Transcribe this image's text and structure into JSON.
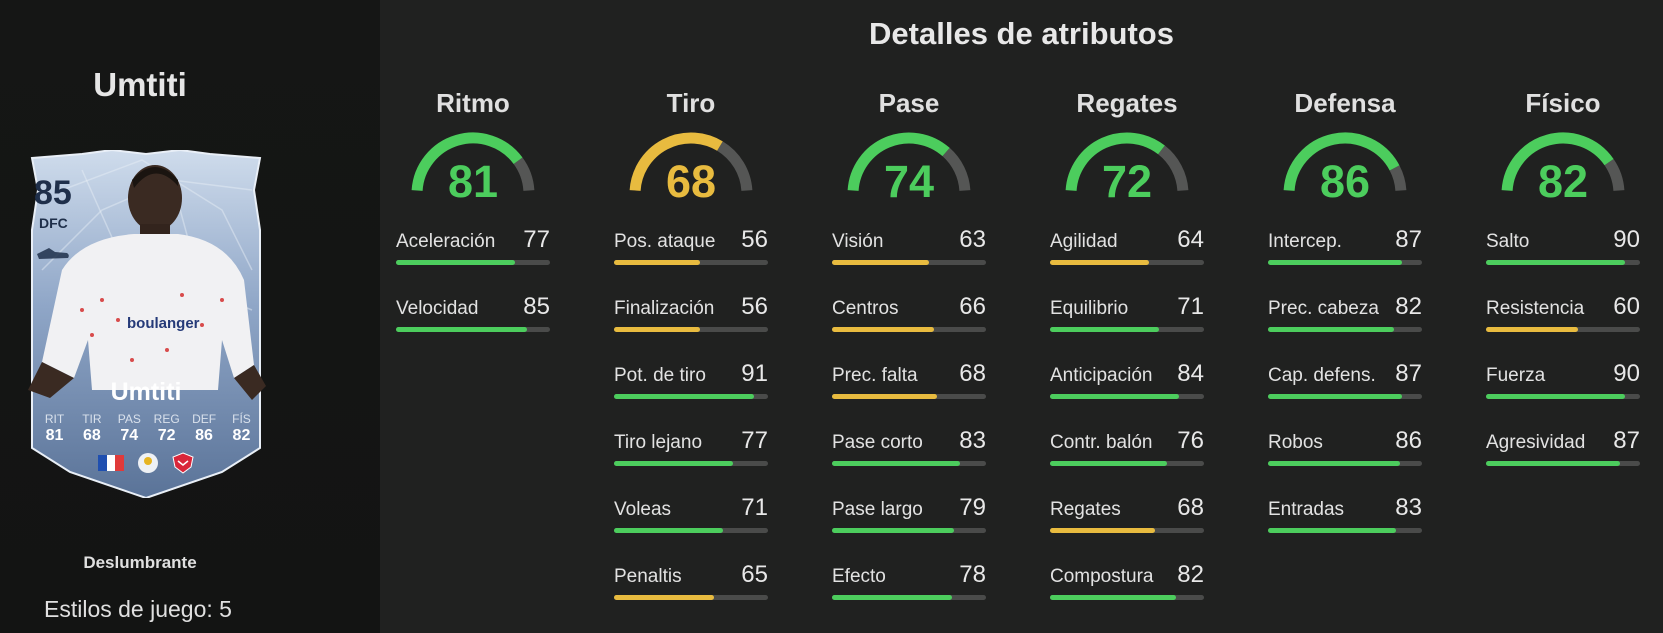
{
  "player": {
    "name": "Umtiti",
    "card": {
      "rating": "85",
      "position": "DFC",
      "name": "Umtiti",
      "stats": [
        {
          "label": "RIT",
          "value": "81"
        },
        {
          "label": "TIR",
          "value": "68"
        },
        {
          "label": "PAS",
          "value": "74"
        },
        {
          "label": "REG",
          "value": "72"
        },
        {
          "label": "DEF",
          "value": "86"
        },
        {
          "label": "FÍS",
          "value": "82"
        }
      ],
      "boot_icon": "boot-icon",
      "flag": "france-flag",
      "league": "ligue1-icon",
      "club": "lille-crest-icon"
    },
    "card_type": "Deslumbrante",
    "playstyles": "Estilos de juego: 5"
  },
  "details": {
    "title": "Detalles de atributos",
    "colors": {
      "high": "#4ccd5d",
      "mid": "#e8bb3f",
      "track": "#555655"
    },
    "categories": [
      {
        "name": "Ritmo",
        "value": 81,
        "attributes": [
          {
            "name": "Aceleración",
            "value": 77
          },
          {
            "name": "Velocidad",
            "value": 85
          }
        ]
      },
      {
        "name": "Tiro",
        "value": 68,
        "attributes": [
          {
            "name": "Pos. ataque",
            "value": 56
          },
          {
            "name": "Finalización",
            "value": 56
          },
          {
            "name": "Pot. de tiro",
            "value": 91
          },
          {
            "name": "Tiro lejano",
            "value": 77
          },
          {
            "name": "Voleas",
            "value": 71
          },
          {
            "name": "Penaltis",
            "value": 65
          }
        ]
      },
      {
        "name": "Pase",
        "value": 74,
        "attributes": [
          {
            "name": "Visión",
            "value": 63
          },
          {
            "name": "Centros",
            "value": 66
          },
          {
            "name": "Prec. falta",
            "value": 68
          },
          {
            "name": "Pase corto",
            "value": 83
          },
          {
            "name": "Pase largo",
            "value": 79
          },
          {
            "name": "Efecto",
            "value": 78
          }
        ]
      },
      {
        "name": "Regates",
        "value": 72,
        "attributes": [
          {
            "name": "Agilidad",
            "value": 64
          },
          {
            "name": "Equilibrio",
            "value": 71
          },
          {
            "name": "Anticipación",
            "value": 84
          },
          {
            "name": "Contr. balón",
            "value": 76
          },
          {
            "name": "Regates",
            "value": 68
          },
          {
            "name": "Compostura",
            "value": 82
          }
        ]
      },
      {
        "name": "Defensa",
        "value": 86,
        "attributes": [
          {
            "name": "Intercep.",
            "value": 87
          },
          {
            "name": "Prec. cabeza",
            "value": 82
          },
          {
            "name": "Cap. defens.",
            "value": 87
          },
          {
            "name": "Robos",
            "value": 86
          },
          {
            "name": "Entradas",
            "value": 83
          }
        ]
      },
      {
        "name": "Físico",
        "value": 82,
        "attributes": [
          {
            "name": "Salto",
            "value": 90
          },
          {
            "name": "Resistencia",
            "value": 60
          },
          {
            "name": "Fuerza",
            "value": 90
          },
          {
            "name": "Agresividad",
            "value": 87
          }
        ]
      }
    ]
  }
}
